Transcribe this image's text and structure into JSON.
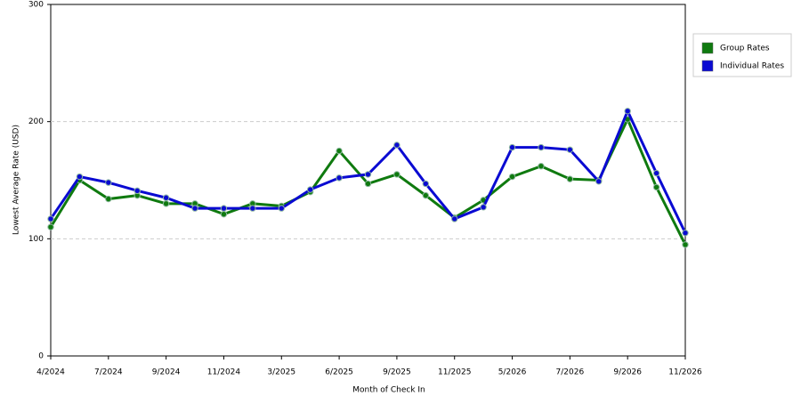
{
  "chart_data": {
    "type": "line",
    "x_label": "Month of Check In",
    "y_label": "Lowest Average Rate (USD)",
    "categories": [
      "4/2024",
      null,
      "7/2024",
      null,
      "9/2024",
      null,
      "11/2024",
      null,
      "3/2025",
      null,
      "6/2025",
      null,
      "9/2025",
      null,
      "11/2025",
      null,
      "5/2026",
      null,
      "7/2026",
      null,
      "9/2026",
      null,
      "11/2026"
    ],
    "series": [
      {
        "name": "Group Rates",
        "color": "#0f7a0f",
        "values": [
          110,
          150,
          134,
          137,
          130,
          130,
          121,
          130,
          128,
          140,
          175,
          147,
          155,
          137,
          118,
          133,
          153,
          162,
          151,
          150,
          202,
          144,
          95
        ]
      },
      {
        "name": "Individual Rates",
        "color": "#0a0ad2",
        "values": [
          117,
          153,
          148,
          141,
          135,
          126,
          126,
          126,
          126,
          142,
          152,
          155,
          180,
          147,
          117,
          127,
          178,
          178,
          176,
          149,
          209,
          156,
          105
        ]
      }
    ],
    "ylim": [
      0,
      300
    ],
    "yticks": [
      0,
      100,
      200,
      300
    ],
    "grid": true,
    "legend": "top-right"
  }
}
